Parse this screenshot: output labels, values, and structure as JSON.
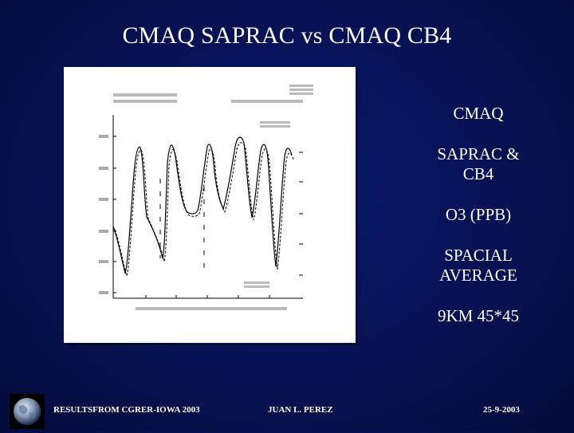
{
  "slide": {
    "title": "CMAQ SAPRAC vs CMAQ CB4",
    "side_text": [
      "CMAQ",
      "SAPRAC & CB4",
      "O3 (PPB)",
      "SPACIAL AVERAGE",
      "9KM 45*45"
    ]
  },
  "footer": {
    "left": "RESULTSFROM CGRER-IOWA 2003",
    "center": "JUAN L. PEREZ",
    "right": "25-9-2003",
    "logo_icon": "earth-globe-icon"
  },
  "colors": {
    "background": "#071357",
    "text": "#ffffff",
    "panel": "#ffffff"
  }
}
